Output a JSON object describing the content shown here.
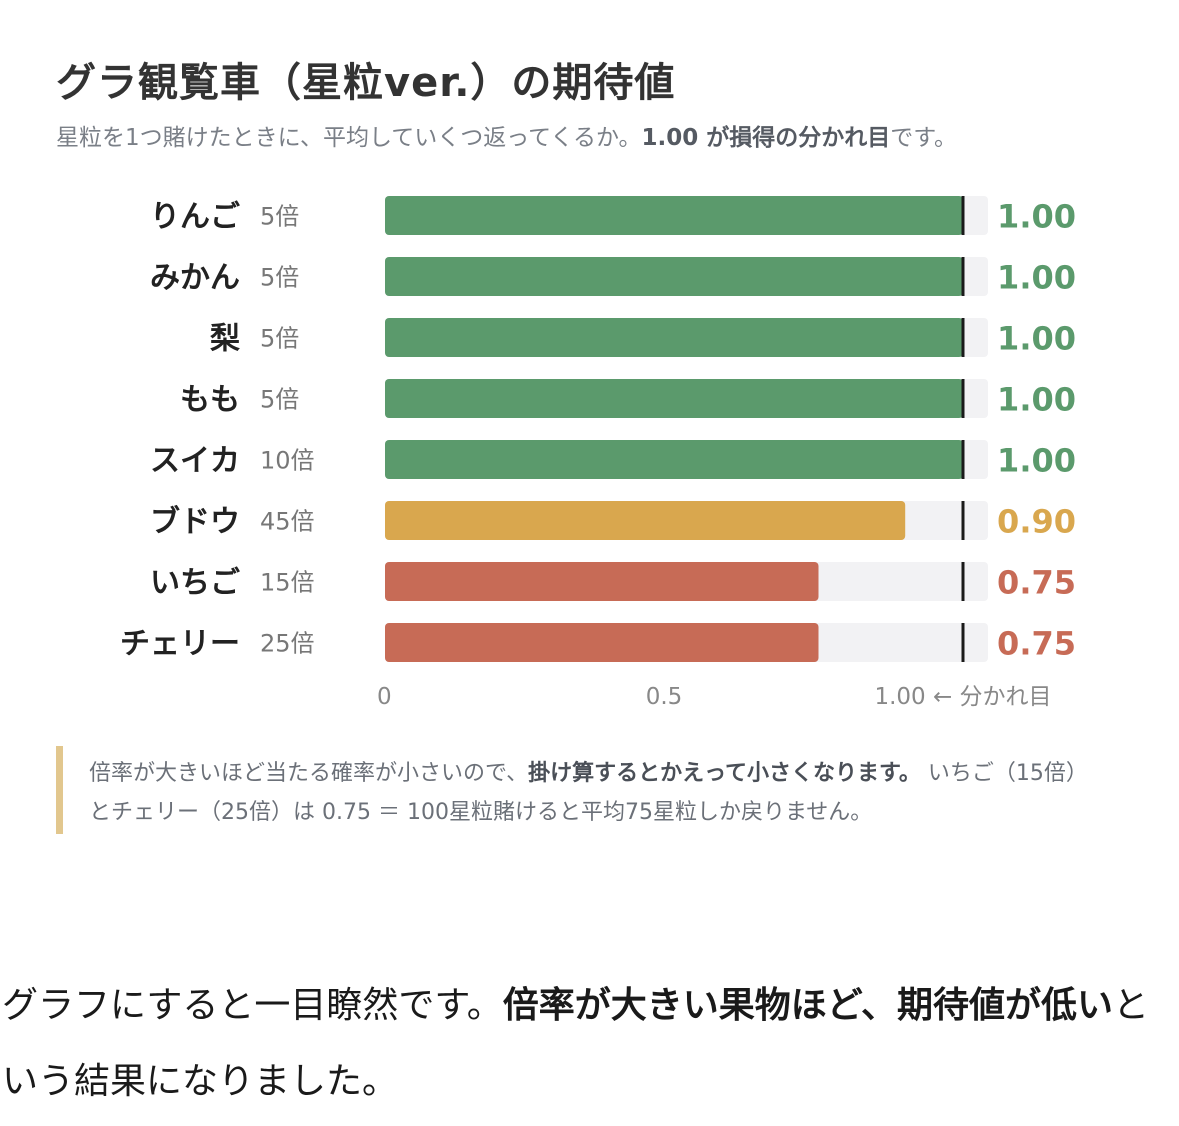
{
  "header": {
    "title": "グラ観覧車（星粒ver.）の期待値",
    "subtitle_pre": "星粒を1つ賭けたときに、平均していくつ返ってくるか。",
    "subtitle_bold": "1.00 が損得の分かれ目",
    "subtitle_post": "です。"
  },
  "chart_data": {
    "type": "bar",
    "orientation": "horizontal",
    "categories": [
      "りんご",
      "みかん",
      "梨",
      "もも",
      "スイカ",
      "ブドウ",
      "いちご",
      "チェリー"
    ],
    "multipliers": [
      "5倍",
      "5倍",
      "5倍",
      "5倍",
      "10倍",
      "45倍",
      "15倍",
      "25倍"
    ],
    "values": [
      1.0,
      1.0,
      1.0,
      1.0,
      1.0,
      0.9,
      0.75,
      0.75
    ],
    "value_labels": [
      "1.00",
      "1.00",
      "1.00",
      "1.00",
      "1.00",
      "0.90",
      "0.75",
      "0.75"
    ],
    "xlim": [
      0,
      1.1
    ],
    "x_ticks": [
      {
        "value": 0,
        "label": "0"
      },
      {
        "value": 0.5,
        "label": "0.5"
      },
      {
        "value": 1.0,
        "label": "1.00 ← 分かれ目"
      }
    ],
    "reference_line": 1.0,
    "grid": false,
    "colors": {
      "above": "#5b9a6c",
      "mid": "#d9a74e",
      "below": "#c76b56",
      "track": "#f2f2f4",
      "reference": "#1a1a1a"
    }
  },
  "note": {
    "text_pre": "倍率が大きいほど当たる確率が小さいので、",
    "text_bold": "掛け算するとかえって小さくなります。",
    "text_post": " いちご（15倍）とチェリー（25倍）は 0.75 ＝ 100星粒賭けると平均75星粒しか戻りません。"
  },
  "body": {
    "text_pre": "グラフにすると一目瞭然です。",
    "text_bold1": "倍率が大きい果物ほど、期待値が低い",
    "text_post": "という結果になりました。"
  }
}
